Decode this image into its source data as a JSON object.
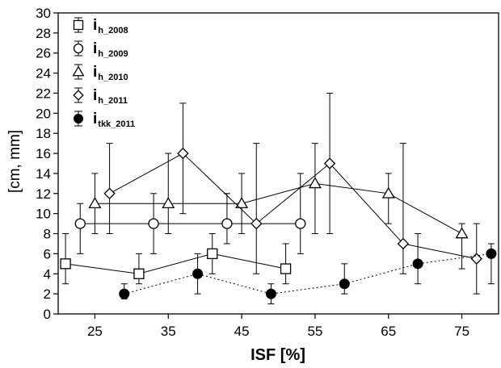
{
  "chart_data": {
    "type": "line",
    "xlabel": "ISF [%]",
    "ylabel": "[cm, mm]",
    "xlim": [
      20,
      80
    ],
    "ylim": [
      0,
      30
    ],
    "xticks": [
      25,
      35,
      45,
      55,
      65,
      75
    ],
    "yticks": [
      0,
      2,
      4,
      6,
      8,
      10,
      12,
      14,
      16,
      18,
      20,
      22,
      24,
      26,
      28,
      30
    ],
    "grid": false,
    "legend_position": "top-left",
    "series": [
      {
        "name_main": "i",
        "name_sub": "h_2008",
        "marker": "square",
        "line": "solid",
        "points": [
          {
            "x": 21,
            "y": 5,
            "lo": 3,
            "hi": 8
          },
          {
            "x": 31,
            "y": 4,
            "lo": 3,
            "hi": 6
          },
          {
            "x": 41,
            "y": 6,
            "lo": 4,
            "hi": 8
          },
          {
            "x": 51,
            "y": 4.5,
            "lo": 3,
            "hi": 7
          }
        ]
      },
      {
        "name_main": "i",
        "name_sub": "h_2009",
        "marker": "circle",
        "line": "solid",
        "points": [
          {
            "x": 23,
            "y": 9,
            "lo": 6,
            "hi": 11
          },
          {
            "x": 33,
            "y": 9,
            "lo": 6,
            "hi": 12
          },
          {
            "x": 43,
            "y": 9,
            "lo": 7,
            "hi": 12
          },
          {
            "x": 53,
            "y": 9,
            "lo": 6,
            "hi": 14
          }
        ]
      },
      {
        "name_main": "i",
        "name_sub": "h_2010",
        "marker": "triangle",
        "line": "solid",
        "points": [
          {
            "x": 25,
            "y": 11,
            "lo": 8,
            "hi": 14
          },
          {
            "x": 35,
            "y": 11,
            "lo": 8,
            "hi": 16
          },
          {
            "x": 45,
            "y": 11,
            "lo": 8,
            "hi": 14
          },
          {
            "x": 55,
            "y": 13,
            "lo": 8,
            "hi": 17
          },
          {
            "x": 65,
            "y": 12,
            "lo": 9,
            "hi": 14
          },
          {
            "x": 75,
            "y": 8,
            "lo": 4.5,
            "hi": 9
          }
        ]
      },
      {
        "name_main": "i",
        "name_sub": "h_2011",
        "marker": "diamond",
        "line": "solid",
        "points": [
          {
            "x": 27,
            "y": 12,
            "lo": 8,
            "hi": 17
          },
          {
            "x": 37,
            "y": 16,
            "lo": 10,
            "hi": 21
          },
          {
            "x": 47,
            "y": 9,
            "lo": 4,
            "hi": 17
          },
          {
            "x": 57,
            "y": 15,
            "lo": 8,
            "hi": 22
          },
          {
            "x": 67,
            "y": 7,
            "lo": 4,
            "hi": 17
          },
          {
            "x": 77,
            "y": 5.5,
            "lo": 2,
            "hi": 9
          }
        ]
      },
      {
        "name_main": "i",
        "name_sub": "tkk_2011",
        "marker": "filled-circle",
        "line": "dotted",
        "points": [
          {
            "x": 29,
            "y": 2,
            "lo": 1.5,
            "hi": 3
          },
          {
            "x": 39,
            "y": 4,
            "lo": 2,
            "hi": 6
          },
          {
            "x": 49,
            "y": 2,
            "lo": 1,
            "hi": 3
          },
          {
            "x": 59,
            "y": 3,
            "lo": 2,
            "hi": 5
          },
          {
            "x": 69,
            "y": 5,
            "lo": 3,
            "hi": 8
          },
          {
            "x": 79,
            "y": 6,
            "lo": 3,
            "hi": 7
          }
        ]
      }
    ]
  }
}
